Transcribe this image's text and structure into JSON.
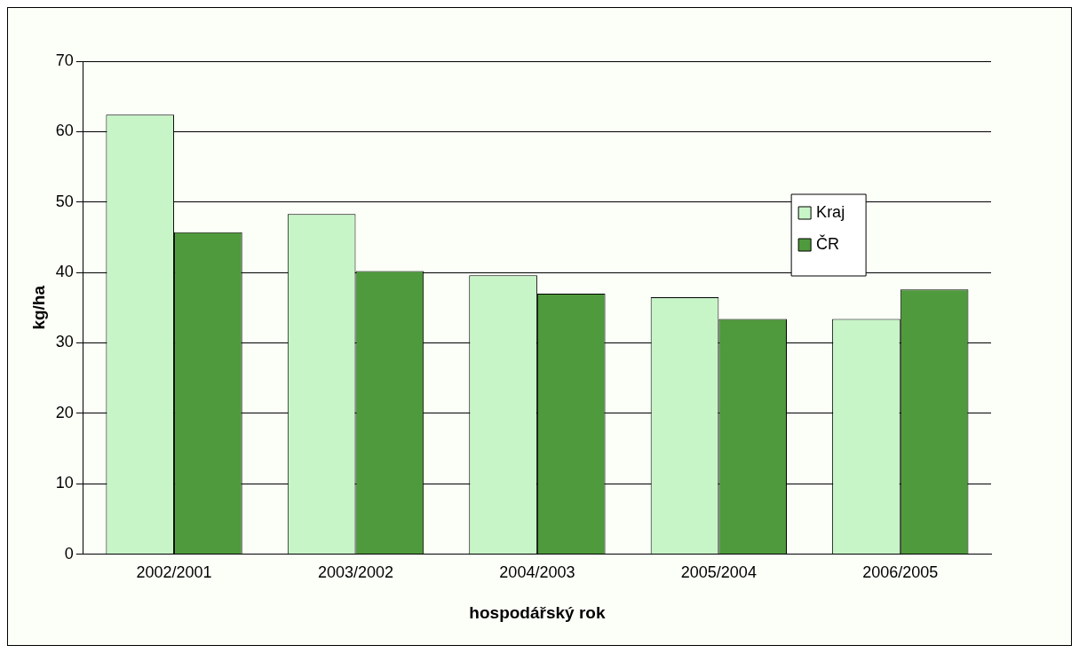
{
  "chart_data": {
    "type": "bar",
    "xlabel": "hospodářský rok",
    "ylabel": "kg/ha",
    "categories": [
      "2002/2001",
      "2003/2002",
      "2004/2003",
      "2005/2004",
      "2006/2005"
    ],
    "series": [
      {
        "name": "Kraj",
        "color": "#c8f5c8",
        "values": [
          62.4,
          48.3,
          39.6,
          36.5,
          33.4
        ]
      },
      {
        "name": "ČR",
        "color": "#4f9a3c",
        "values": [
          45.7,
          40.2,
          37.0,
          33.4,
          37.6
        ]
      }
    ],
    "ylim": [
      0,
      70
    ],
    "yticks": [
      0,
      10,
      20,
      30,
      40,
      50,
      60,
      70
    ],
    "grid": "y",
    "legend": "right"
  }
}
